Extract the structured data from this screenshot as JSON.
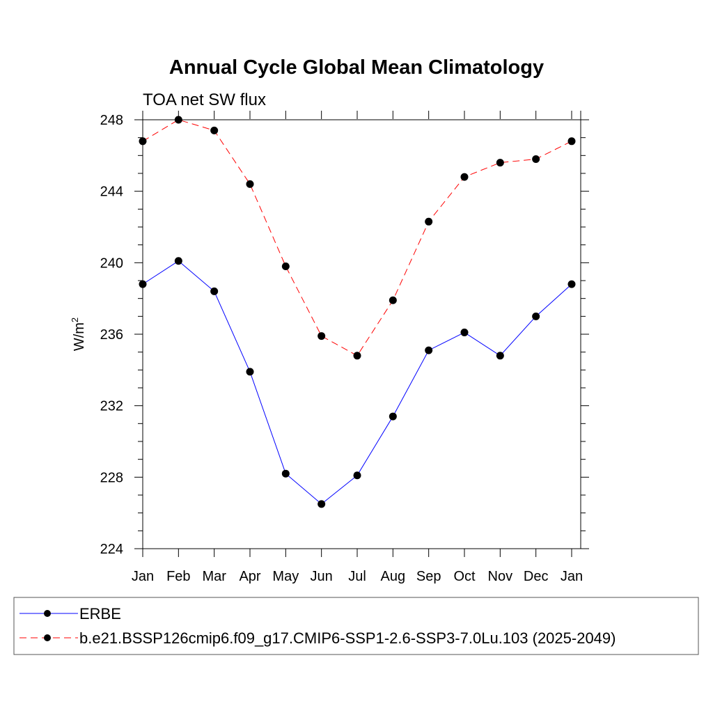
{
  "chart_data": {
    "type": "line",
    "title": "Annual Cycle Global Mean Climatology",
    "subtitle": "TOA net SW flux",
    "xlabel": "",
    "ylabel": "W/m",
    "ylabel_sup": "2",
    "categories": [
      "Jan",
      "Feb",
      "Mar",
      "Apr",
      "May",
      "Jun",
      "Jul",
      "Aug",
      "Sep",
      "Oct",
      "Nov",
      "Dec",
      "Jan"
    ],
    "ylim": [
      224,
      248
    ],
    "yticks": [
      "248",
      "244",
      "240",
      "236",
      "232",
      "228",
      "224"
    ],
    "grid": false,
    "legend_position": "bottom",
    "series": [
      {
        "name": "ERBE",
        "color": "#0000ff",
        "style": "solid",
        "values": [
          238.8,
          240.1,
          238.4,
          233.9,
          228.2,
          226.5,
          228.1,
          231.4,
          235.1,
          236.1,
          234.8,
          237.0,
          238.8
        ]
      },
      {
        "name": "b.e21.BSSP126cmip6.f09_g17.CMIP6-SSP1-2.6-SSP3-7.0Lu.103 (2025-2049)",
        "color": "#ff0000",
        "style": "dashed",
        "values": [
          246.8,
          248.0,
          247.4,
          244.4,
          239.8,
          235.9,
          234.8,
          237.9,
          242.3,
          244.8,
          245.6,
          245.8,
          246.8
        ]
      }
    ]
  }
}
